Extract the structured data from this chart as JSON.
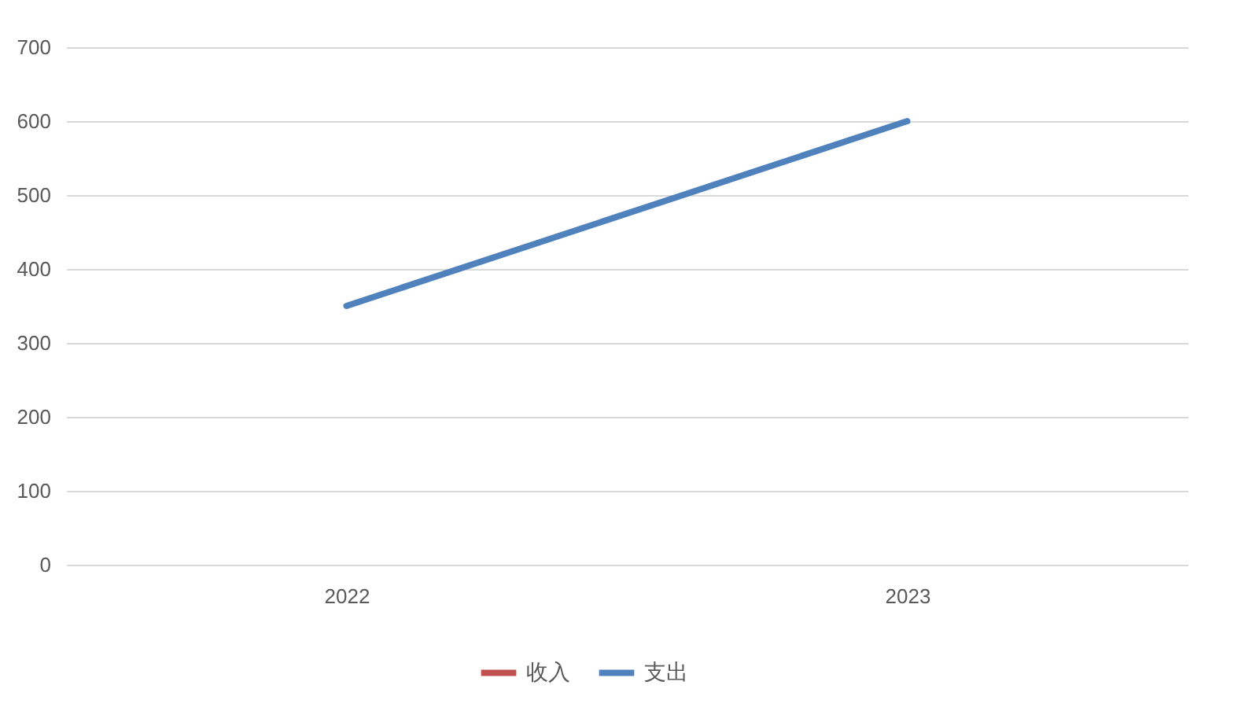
{
  "chart_data": {
    "type": "line",
    "categories": [
      "2022",
      "2023"
    ],
    "series": [
      {
        "name": "收入",
        "color": "#c0504d",
        "values": [
          null,
          null
        ]
      },
      {
        "name": "支出",
        "color": "#4f81bd",
        "values": [
          350,
          600
        ]
      }
    ],
    "ylim": [
      0,
      700
    ],
    "yticks": [
      0,
      100,
      200,
      300,
      400,
      500,
      600,
      700
    ],
    "grid": "y",
    "legend": "bottom",
    "marker": "none",
    "line_style": "solid"
  }
}
